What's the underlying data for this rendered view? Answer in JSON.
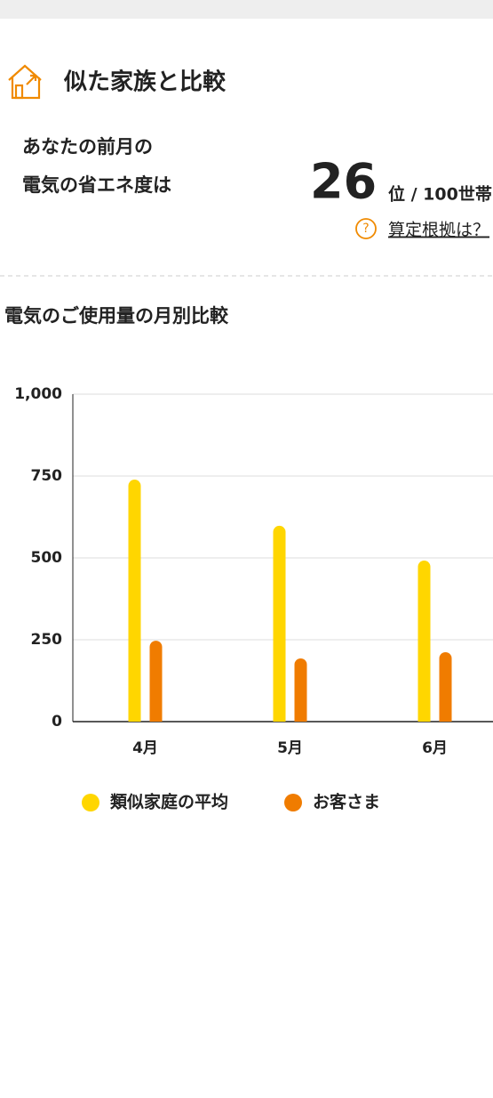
{
  "header": {
    "title": "似た家族と比較"
  },
  "score": {
    "label_lines": [
      "あなたの前月の",
      "電気の省エネ度は"
    ],
    "rank": 26,
    "rank_suffix": "位 / 100世帯",
    "link": "算定根拠は？"
  },
  "chart_data": {
    "type": "bar",
    "title": "電気のご使用量の月別比較",
    "categories": [
      "4月",
      "5月",
      "6月"
    ],
    "series": [
      {
        "name": "類似家庭の平均",
        "color": "#ffd600",
        "values": [
          739,
          598,
          492
        ]
      },
      {
        "name": "お客さま",
        "color": "#f07c00",
        "values": [
          247,
          193,
          212
        ]
      }
    ],
    "ylim": [
      0,
      1000
    ],
    "yticks": [
      0,
      250,
      500,
      750,
      {
        "value": 1000,
        "label": "1,000"
      }
    ],
    "grid": true
  }
}
